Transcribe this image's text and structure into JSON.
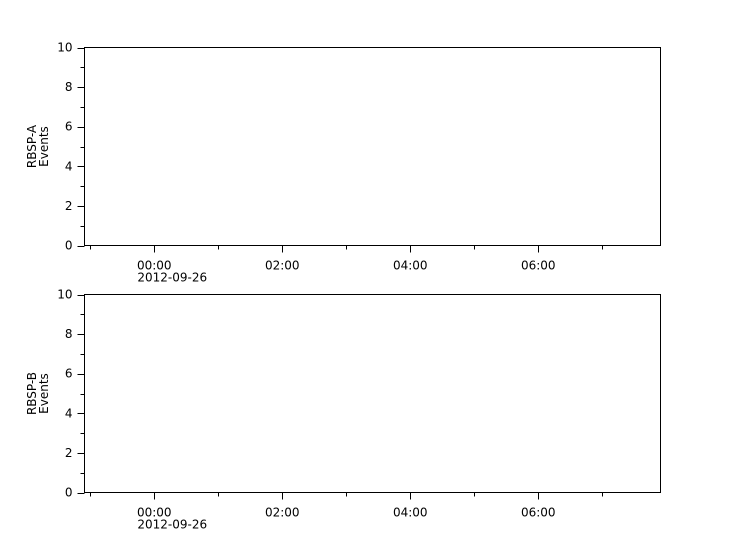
{
  "chart_data": [
    {
      "type": "line",
      "ylabel": [
        "RBSP-A",
        "Events"
      ],
      "ylim": [
        0,
        10
      ],
      "yticks": [
        "0",
        "2",
        "4",
        "6",
        "8",
        "10"
      ],
      "xlim_hours": [
        -1.09,
        7.91
      ],
      "xticks": [
        {
          "hour": 0,
          "label": "00:00",
          "sublabel": "2012-09-26"
        },
        {
          "hour": 2,
          "label": "02:00"
        },
        {
          "hour": 4,
          "label": "04:00"
        },
        {
          "hour": 6,
          "label": "06:00"
        }
      ],
      "series": [],
      "grid": false
    },
    {
      "type": "line",
      "ylabel": [
        "RBSP-B",
        "Events"
      ],
      "ylim": [
        0,
        10
      ],
      "yticks": [
        "0",
        "2",
        "4",
        "6",
        "8",
        "10"
      ],
      "xlim_hours": [
        -1.09,
        7.91
      ],
      "xticks": [
        {
          "hour": 0,
          "label": "00:00",
          "sublabel": "2012-09-26"
        },
        {
          "hour": 2,
          "label": "02:00"
        },
        {
          "hour": 4,
          "label": "04:00"
        },
        {
          "hour": 6,
          "label": "06:00"
        }
      ],
      "series": [],
      "grid": false
    }
  ]
}
